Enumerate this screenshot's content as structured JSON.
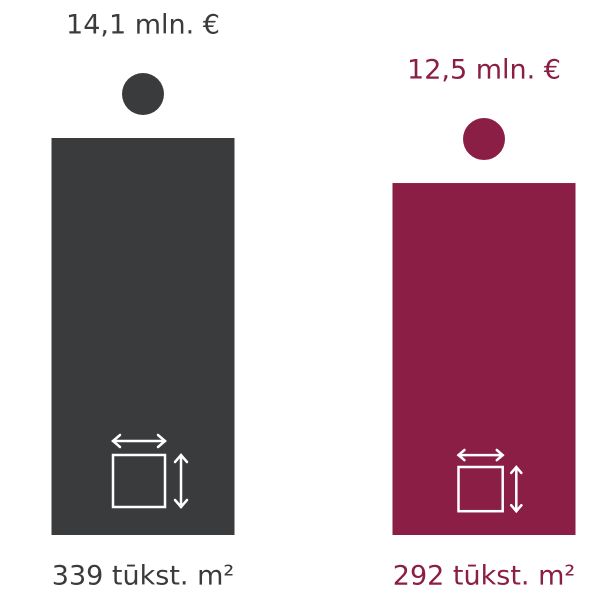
{
  "chart_data": {
    "type": "bar",
    "categories": [
      "339 tūkst. m²",
      "292 tūkst. m²"
    ],
    "values": [
      14.1,
      12.5
    ],
    "value_labels": [
      "14,1 mln. €",
      "12,5 mln. €"
    ],
    "colors": [
      "#3a3b3d",
      "#8a1e44"
    ]
  }
}
